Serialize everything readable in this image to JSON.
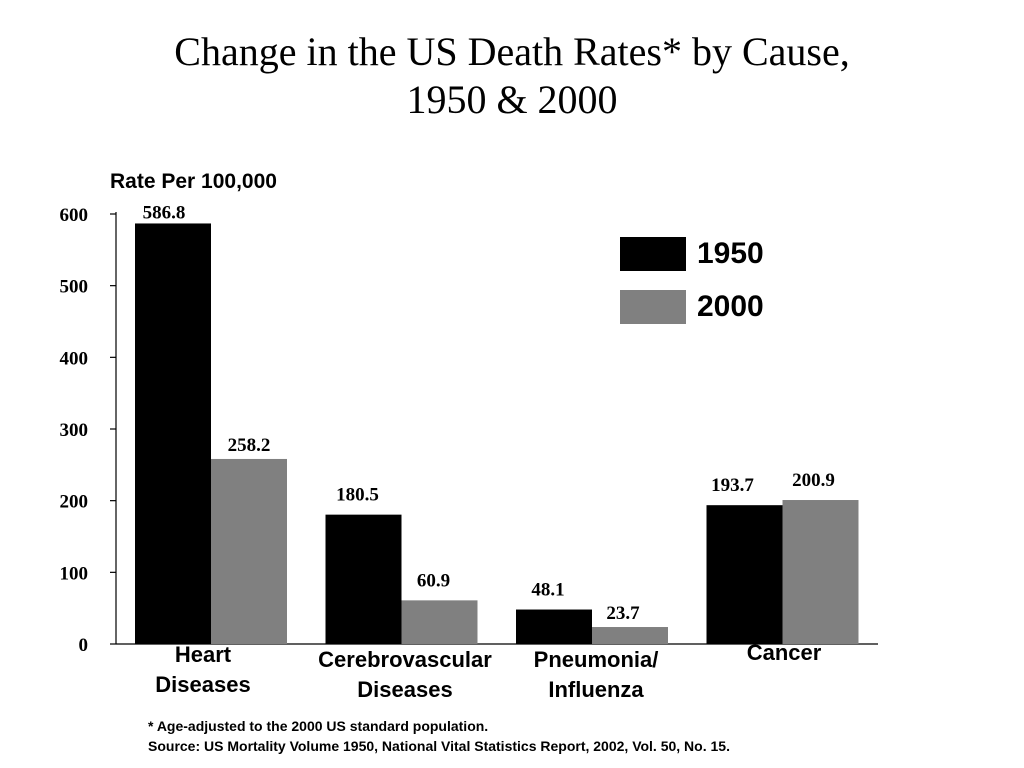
{
  "title_line1": "Change in the US Death Rates* by Cause,",
  "title_line2": "1950 & 2000",
  "chart_data": {
    "type": "bar",
    "ylabel": "Rate Per 100,000",
    "ylim": [
      0,
      600
    ],
    "yticks": [
      0,
      100,
      200,
      300,
      400,
      500,
      600
    ],
    "grid": false,
    "legend_position": "top-right",
    "categories": [
      {
        "line1": "Heart",
        "line2": "Diseases"
      },
      {
        "line1": "Cerebrovascular",
        "line2": "Diseases"
      },
      {
        "line1": "Pneumonia/",
        "line2": "Influenza"
      },
      {
        "line1": "Cancer",
        "line2": ""
      }
    ],
    "series": [
      {
        "name": "1950",
        "color": "#000000",
        "values": [
          586.8,
          180.5,
          48.1,
          193.7
        ],
        "labels": [
          "586.8",
          "180.5",
          "48.1",
          "193.7"
        ]
      },
      {
        "name": "2000",
        "color": "#808080",
        "values": [
          258.2,
          60.9,
          23.7,
          200.9
        ],
        "labels": [
          "258.2",
          "60.9",
          "23.7",
          "200.9"
        ]
      }
    ]
  },
  "footnote_line1": "* Age-adjusted to the 2000 US standard population.",
  "footnote_line2": "Source: US Mortality Volume 1950, National Vital Statistics Report, 2002, Vol. 50, No. 15."
}
